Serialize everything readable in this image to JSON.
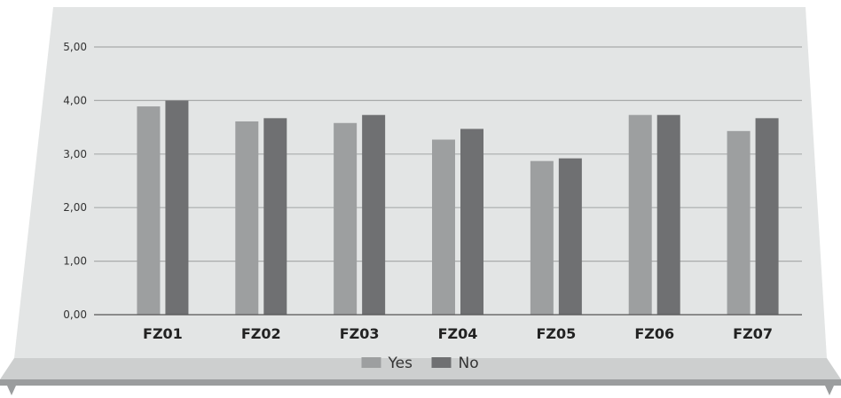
{
  "chart_data": {
    "type": "bar",
    "title": "",
    "xlabel": "",
    "ylabel": "",
    "categories": [
      "FZ01",
      "FZ02",
      "FZ03",
      "FZ04",
      "FZ05",
      "FZ06",
      "FZ07"
    ],
    "series": [
      {
        "name": "Yes",
        "values": [
          3.89,
          3.61,
          3.58,
          3.27,
          2.87,
          3.73,
          3.43
        ],
        "color": "#9d9fa0"
      },
      {
        "name": "No",
        "values": [
          4.0,
          3.67,
          3.73,
          3.47,
          2.92,
          3.73,
          3.67
        ],
        "color": "#6f7072"
      }
    ],
    "ylim": [
      0,
      5
    ],
    "yticks": [
      "0,00",
      "1,00",
      "2,00",
      "3,00",
      "4,00",
      "5,00"
    ],
    "grid": true,
    "legend_position": "bottom-center"
  },
  "colors": {
    "panel_background": "#e3e5e5",
    "shelf_top": "#cdcfcf",
    "shelf_edge": "#9b9d9e",
    "gridline": "#a9abab",
    "axis": "#555555"
  }
}
